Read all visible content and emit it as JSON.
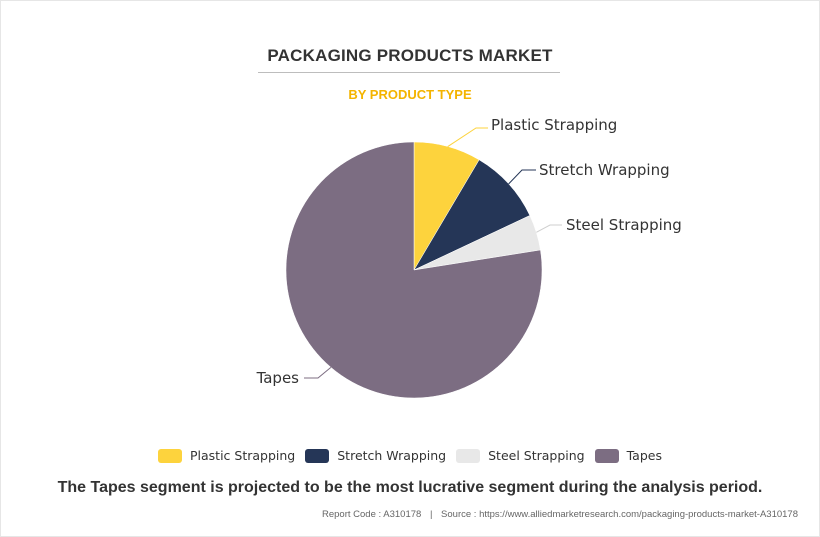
{
  "chart_data": {
    "type": "pie",
    "title": "PACKAGING PRODUCTS MARKET",
    "subtitle": "BY PRODUCT TYPE",
    "slices": [
      {
        "label": "Plastic Strapping",
        "value": 8.5,
        "color": "#fdd33d"
      },
      {
        "label": "Stretch Wrapping",
        "value": 9.5,
        "color": "#253657"
      },
      {
        "label": "Steel Strapping",
        "value": 4.5,
        "color": "#e8e8e8"
      },
      {
        "label": "Tapes",
        "value": 77.5,
        "color": "#7c6d82"
      }
    ],
    "legend_position": "bottom"
  },
  "caption": "The Tapes segment is projected to be the most lucrative segment during the analysis period.",
  "footer": {
    "report_code": "Report Code : A310178",
    "separator": "|",
    "source": "Source : https://www.alliedmarketresearch.com/packaging-products-market-A310178"
  }
}
